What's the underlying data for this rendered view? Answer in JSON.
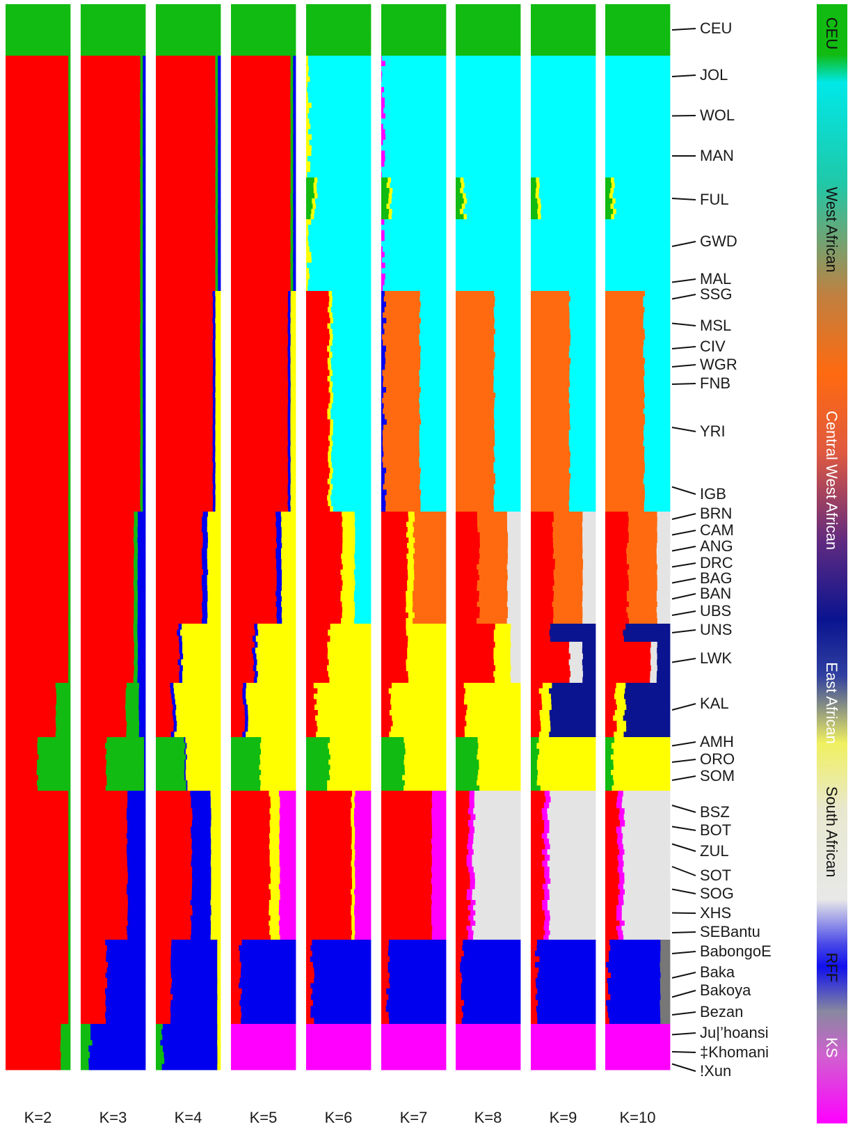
{
  "chart_data": {
    "type": "admixture-stacked-bar",
    "x": [
      "K=2",
      "K=3",
      "K=4",
      "K=5",
      "K=6",
      "K=7",
      "K=8",
      "K=9",
      "K=10"
    ],
    "populations": [
      "CEU",
      "JOL",
      "WOL",
      "MAN",
      "FUL",
      "GWD",
      "MAL",
      "SSG",
      "MSL",
      "CIV",
      "WGR",
      "FNB",
      "YRI",
      "IGB",
      "BRN",
      "CAM",
      "ANG",
      "DRC",
      "BAG",
      "BAN",
      "UBS",
      "UNS",
      "LWK",
      "KAL",
      "AMH",
      "ORO",
      "SOM",
      "BSZ",
      "BOT",
      "ZUL",
      "SOT",
      "SOG",
      "XHS",
      "SEBantu",
      "BabongoE",
      "Baka",
      "Bakoya",
      "Bezan",
      "Ju|’hoansi",
      "‡Khomani",
      "!Xun"
    ],
    "legend": [
      {
        "label": "CEU",
        "color": "#11bb11"
      },
      {
        "label": "West African",
        "color": "#00e8e8"
      },
      {
        "label": "Central West African",
        "color": "#ff6a10"
      },
      {
        "label": "East African",
        "color": "#0a1490"
      },
      {
        "label": "South African",
        "color": "#ffff00"
      },
      {
        "label": "RFF",
        "color": "#e8e8e8"
      },
      {
        "label": "KS",
        "color": "#ff00ff"
      }
    ],
    "component_colors": {
      "green": "#11bb11",
      "red": "#ff0000",
      "blue": "#0000ee",
      "yellow": "#ffff00",
      "magenta": "#ff00ff",
      "cyan": "#00ffff",
      "orange": "#ff6a10",
      "lightgray": "#e4e4e4",
      "navy": "#0a1490",
      "darkgray": "#777777"
    }
  }
}
